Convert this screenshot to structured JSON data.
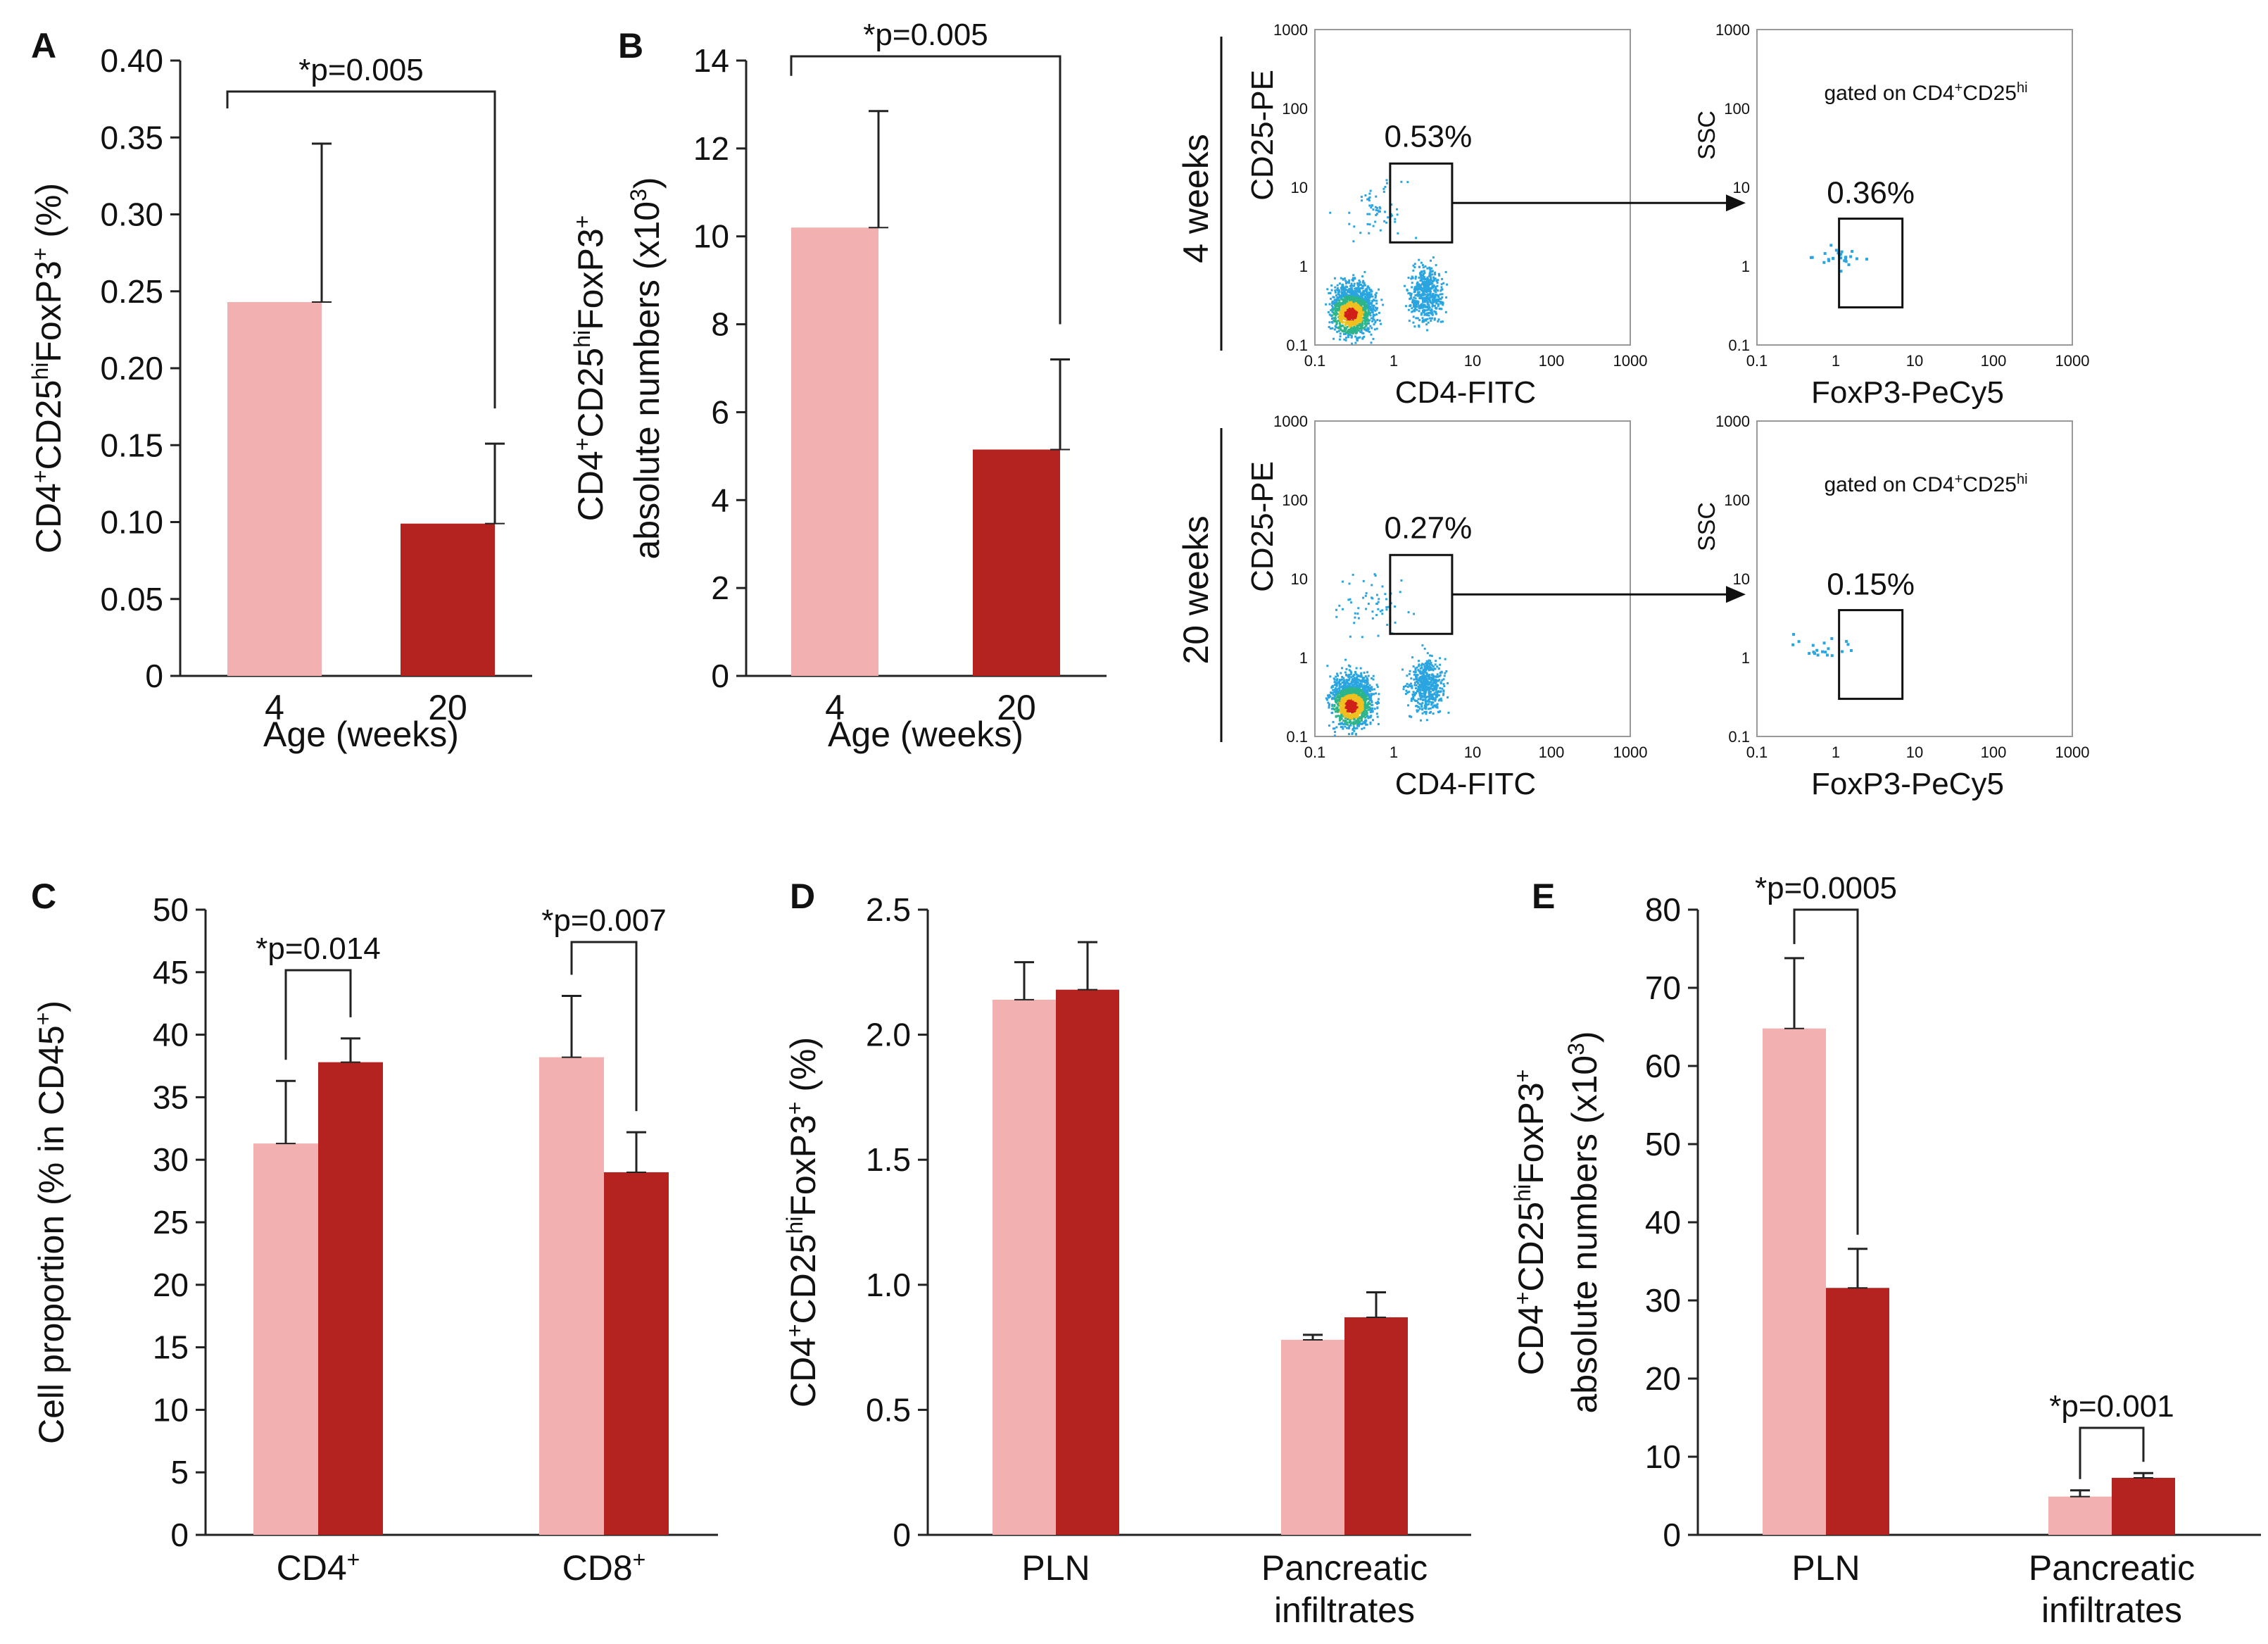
{
  "colors": {
    "young": "#f2b0b0",
    "old": "#b42320",
    "axis": "#222222",
    "dot": "#2aa5e0",
    "dot_hot": "#f0c020",
    "dot_core": "#d02018"
  },
  "chart_data": [
    {
      "panel": "A",
      "type": "bar",
      "ylabel_lines": [
        "CD4",
        "+",
        "CD25",
        "hi",
        "FoxP3",
        "+",
        " (%)"
      ],
      "xlabel": "Age (weeks)",
      "categories": [
        "4",
        "20"
      ],
      "values": [
        0.243,
        0.099
      ],
      "errors": [
        0.103,
        0.052
      ],
      "ylim": [
        0,
        0.4
      ],
      "yticks": [
        0,
        0.05,
        0.1,
        0.15,
        0.2,
        0.25,
        0.3,
        0.35,
        0.4
      ],
      "ytick_labels": [
        "0",
        "0.05",
        "0.10",
        "0.15",
        "0.20",
        "0.25",
        "0.30",
        "0.35",
        "0.40"
      ],
      "annotation": "*p=0.005"
    },
    {
      "panel": "B",
      "type": "bar",
      "ylabel_line1": [
        "CD4",
        "+",
        "CD25",
        "hi",
        "FoxP3",
        "+"
      ],
      "ylabel_line2": [
        "absolute numbers (x10",
        "3",
        ")"
      ],
      "xlabel": "Age (weeks)",
      "categories": [
        "4",
        "20"
      ],
      "values": [
        10.2,
        5.15
      ],
      "errors": [
        2.65,
        2.05
      ],
      "ylim": [
        0,
        14
      ],
      "yticks": [
        0,
        2,
        4,
        6,
        8,
        10,
        12,
        14
      ],
      "ytick_labels": [
        "0",
        "2",
        "4",
        "6",
        "8",
        "10",
        "12",
        "14"
      ],
      "annotation": "*p=0.005"
    },
    {
      "panel": "C",
      "type": "bar",
      "ylabel_lines": [
        "Cell proportion (% in CD45",
        "+",
        ")"
      ],
      "categories": [
        [
          "CD4",
          "+"
        ],
        [
          "CD8",
          "+"
        ]
      ],
      "series": [
        {
          "name": "4 weeks",
          "values": [
            31.3,
            38.2
          ],
          "errors": [
            5.0,
            4.9
          ]
        },
        {
          "name": "20 weeks",
          "values": [
            37.8,
            29.0
          ],
          "errors": [
            1.9,
            3.2
          ]
        }
      ],
      "ylim": [
        0,
        50
      ],
      "yticks": [
        0,
        5,
        10,
        15,
        20,
        25,
        30,
        35,
        40,
        45,
        50
      ],
      "ytick_labels": [
        "0",
        "5",
        "10",
        "15",
        "20",
        "25",
        "30",
        "35",
        "40",
        "45",
        "50"
      ],
      "annotations": [
        "*p=0.014",
        "*p=0.007"
      ]
    },
    {
      "panel": "D",
      "type": "bar",
      "ylabel_lines": [
        "CD4",
        "+",
        "CD25",
        "hi",
        "FoxP3",
        "+",
        " (%)"
      ],
      "categories": [
        [
          "PLN"
        ],
        [
          "Pancreatic",
          "infiltrates"
        ]
      ],
      "series": [
        {
          "name": "4 weeks",
          "values": [
            2.14,
            0.78
          ],
          "errors": [
            0.15,
            0.02
          ]
        },
        {
          "name": "20 weeks",
          "values": [
            2.18,
            0.87
          ],
          "errors": [
            0.19,
            0.1
          ]
        }
      ],
      "ylim": [
        0,
        2.5
      ],
      "yticks": [
        0,
        0.5,
        1.0,
        1.5,
        2.0,
        2.5
      ],
      "ytick_labels": [
        "0",
        "0.5",
        "1.0",
        "1.5",
        "2.0",
        "2.5"
      ]
    },
    {
      "panel": "E",
      "type": "bar",
      "ylabel_line1": [
        "CD4",
        "+",
        "CD25",
        "hi",
        "FoxP3",
        "+"
      ],
      "ylabel_line2": [
        "absolute numbers (x10",
        "3",
        ")"
      ],
      "categories": [
        [
          "PLN"
        ],
        [
          "Pancreatic",
          "infiltrates"
        ]
      ],
      "series": [
        {
          "name": "4 weeks",
          "values": [
            64.8,
            4.9
          ],
          "errors": [
            9.0,
            0.8
          ]
        },
        {
          "name": "20 weeks",
          "values": [
            31.6,
            7.3
          ],
          "errors": [
            5.0,
            0.6
          ]
        }
      ],
      "ylim": [
        0,
        80
      ],
      "yticks": [
        0,
        10,
        20,
        30,
        40,
        50,
        60,
        70,
        80
      ],
      "ytick_labels": [
        "0",
        "10",
        "20",
        "30",
        "40",
        "50",
        "60",
        "70",
        "80"
      ],
      "annotations": [
        "*p=0.0005",
        "*p=0.001"
      ]
    }
  ],
  "flow": {
    "row_labels": [
      "4 weeks",
      "20 weeks"
    ],
    "axis_ticks": [
      "0.1",
      "1",
      "10",
      "100",
      "1000"
    ],
    "left_xlabel": "CD4-FITC",
    "left_ylabel": "CD25-PE",
    "right_xlabel": "FoxP3-PeCy5",
    "right_ylabel": "SSC",
    "gate_note": [
      "gated on CD4",
      "+",
      "CD25",
      "hi"
    ],
    "gates": [
      {
        "left_pct": "0.53%",
        "right_pct": "0.36%"
      },
      {
        "left_pct": "0.27%",
        "right_pct": "0.15%"
      }
    ]
  }
}
